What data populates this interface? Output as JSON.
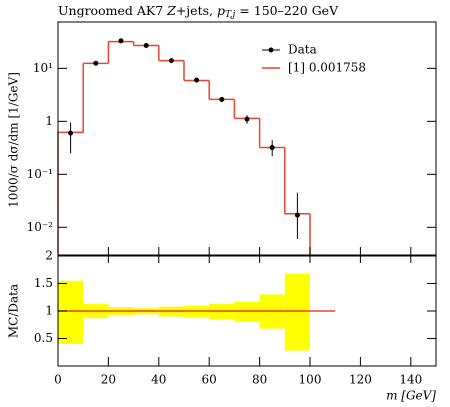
{
  "chart_data": [
    {
      "type": "histogram",
      "title": [
        "Ungroomed AK7 ",
        "Z",
        "+jets, ",
        "p",
        "T,j",
        " = 150–220 GeV"
      ],
      "ylabel": "1000/σ dσ/dm [1/GeV]",
      "log_y": true,
      "xlim": [
        0,
        150
      ],
      "ylim": [
        0.003,
        75
      ],
      "yticks": [
        {
          "value": 0.01,
          "label": "10⁻²"
        },
        {
          "value": 0.1,
          "label": "10⁻¹"
        },
        1,
        {
          "value": 10,
          "label": "10¹"
        }
      ],
      "legend": "upper right",
      "bins": [
        0,
        10,
        20,
        30,
        40,
        50,
        60,
        70,
        80,
        90,
        100
      ],
      "series": [
        {
          "name": "Data",
          "color": "#000000",
          "x": [
            5,
            15,
            25,
            35,
            45,
            55,
            65,
            75,
            85,
            95
          ],
          "values": [
            0.6,
            12.5,
            33,
            27,
            14,
            6,
            2.6,
            1.1,
            0.32,
            0.017
          ],
          "yerr": [
            [
              0.35,
              0.35
            ],
            [
              1.2,
              1.2
            ],
            [
              2,
              2
            ],
            [
              1.5,
              1.5
            ],
            [
              1,
              1
            ],
            [
              0.5,
              0.5
            ],
            [
              0.3,
              0.3
            ],
            [
              0.2,
              0.2
            ],
            [
              0.1,
              0.12
            ],
            [
              0.011,
              0.028
            ]
          ]
        },
        {
          "name": "[1] 0.001758",
          "color": "#e8432e",
          "values": [
            0.62,
            12.4,
            32,
            27,
            14,
            5.9,
            2.6,
            1.14,
            0.32,
            0.018
          ]
        }
      ]
    },
    {
      "type": "band",
      "ylabel": "MC/Data",
      "xlabel": "m [GeV]",
      "xlim": [
        0,
        150
      ],
      "xticks": [
        0,
        20,
        40,
        60,
        80,
        100,
        120,
        140
      ],
      "ylim": [
        0,
        2
      ],
      "yticks": [
        0.5,
        1,
        1.5,
        2
      ],
      "bins": [
        0,
        10,
        20,
        30,
        40,
        50,
        60,
        70,
        80,
        90,
        100
      ],
      "band_color": "#ffff00",
      "band_low": [
        0.4,
        0.87,
        0.93,
        0.94,
        0.9,
        0.88,
        0.85,
        0.8,
        0.68,
        0.28
      ],
      "band_high": [
        1.55,
        1.13,
        1.07,
        1.05,
        1.08,
        1.1,
        1.13,
        1.17,
        1.3,
        1.68
      ],
      "line": {
        "color": "#e8432e",
        "x": [
          0,
          110
        ],
        "values": [
          1,
          1
        ]
      }
    }
  ]
}
